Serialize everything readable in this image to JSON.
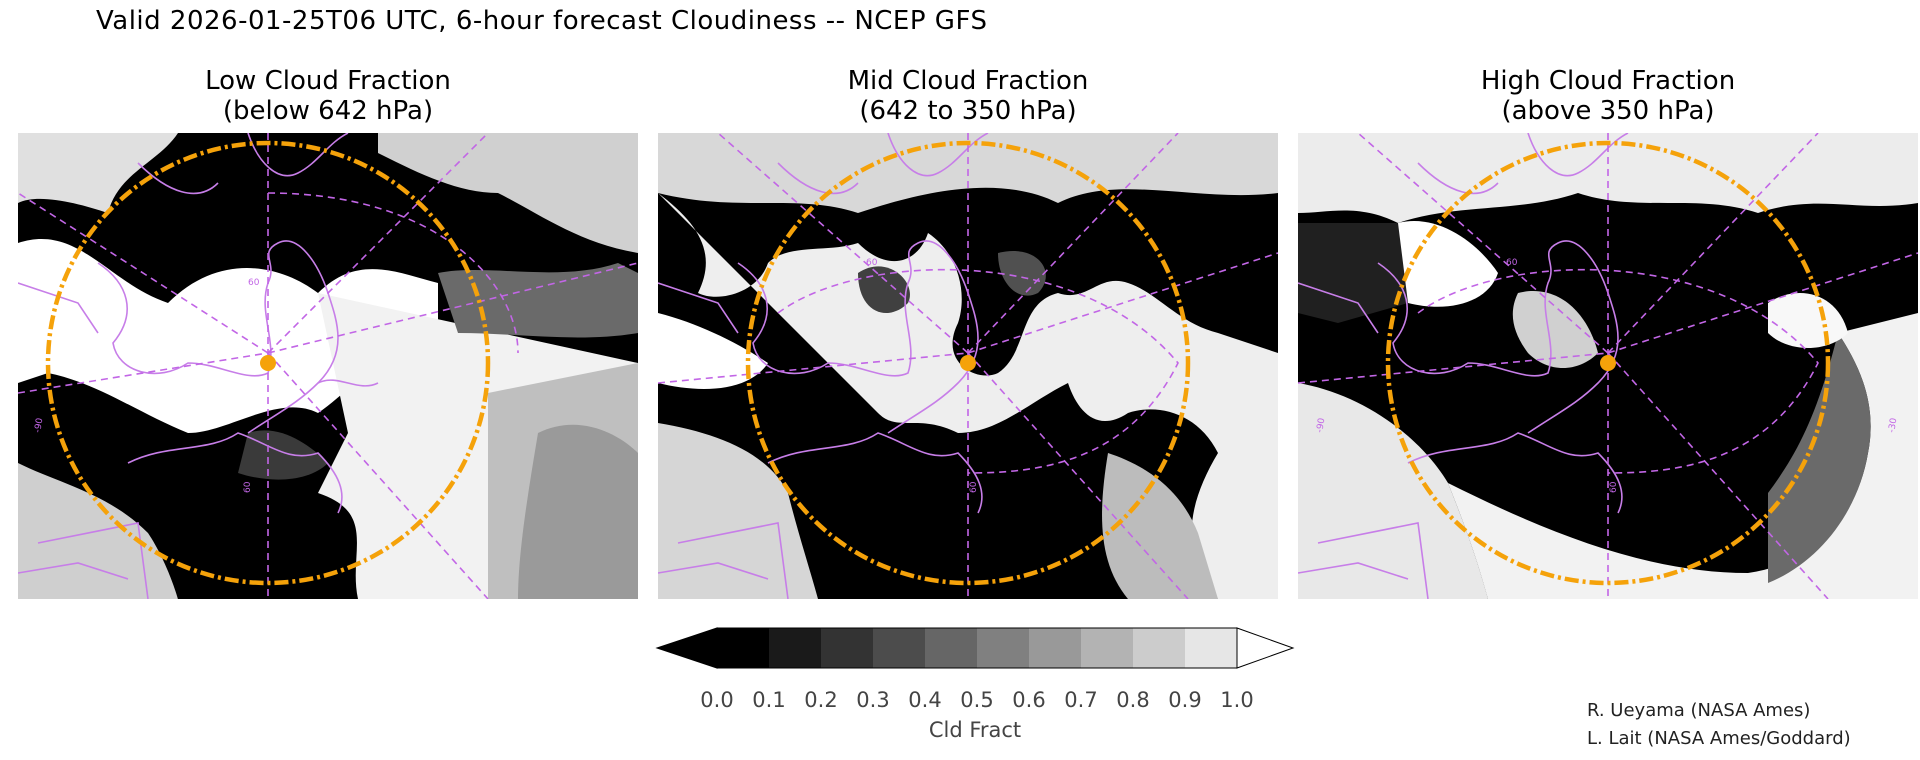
{
  "title": "Valid 2026-01-25T06 UTC, 6-hour forecast Cloudiness -- NCEP GFS",
  "panels": [
    {
      "line1": "Low Cloud Fraction",
      "line2": "(below 642 hPa)"
    },
    {
      "line1": "Mid Cloud Fraction",
      "line2": "(642 to 350 hPa)"
    },
    {
      "line1": "High Cloud Fraction",
      "line2": "(above 350 hPa)"
    }
  ],
  "graticule_labels": {
    "lat": "60",
    "lon_west": "-90",
    "lon_east": "-30"
  },
  "colorbar": {
    "ticks": [
      "0.0",
      "0.1",
      "0.2",
      "0.3",
      "0.4",
      "0.5",
      "0.6",
      "0.7",
      "0.8",
      "0.9",
      "1.0"
    ],
    "unit": "Cld Fract",
    "colors": [
      "#000000",
      "#1a1a1a",
      "#333333",
      "#4c4c4c",
      "#666666",
      "#808080",
      "#999999",
      "#b3b3b3",
      "#cccccc",
      "#e6e6e6",
      "#ffffff"
    ]
  },
  "credits": [
    "R. Ueyama (NASA Ames)",
    "L. Lait (NASA Ames/Goddard)"
  ],
  "style_colors": {
    "coastline": "#c77ee8",
    "circle": "#f5a20a",
    "marker": "#f5a20a"
  }
}
